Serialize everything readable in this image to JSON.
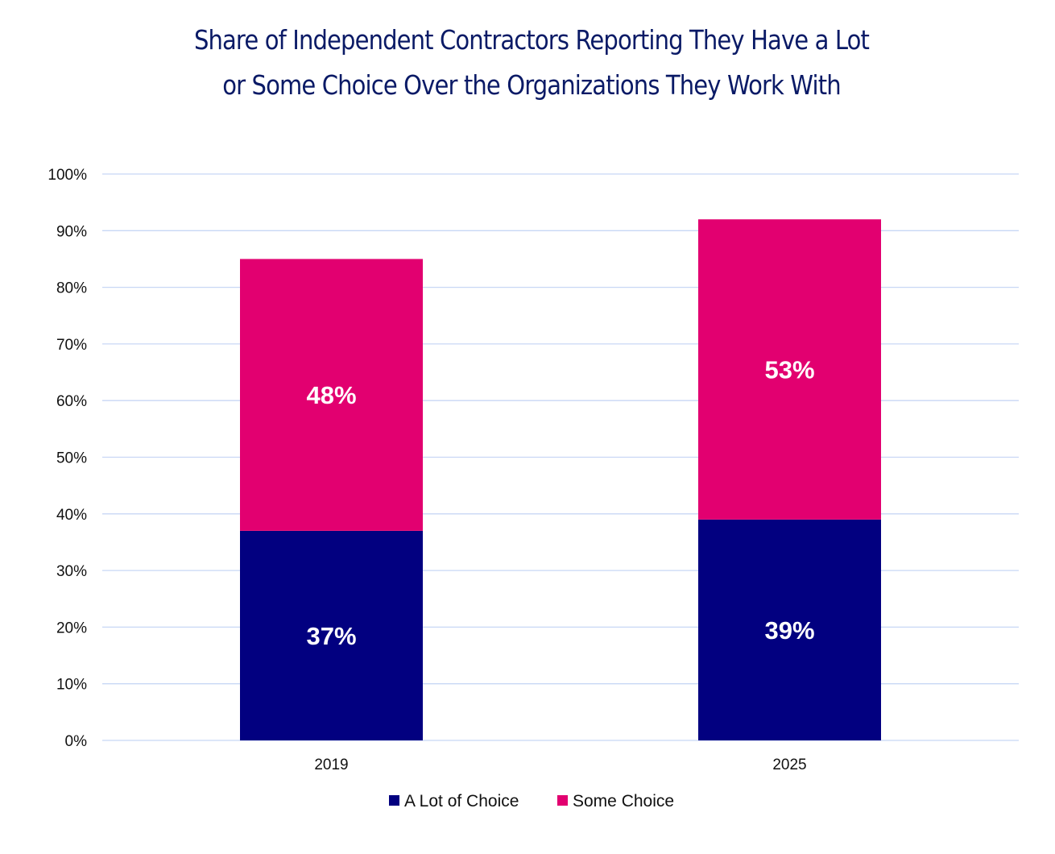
{
  "chart_data": {
    "type": "bar",
    "stacked": true,
    "title": [
      "Share of Independent Contractors Reporting They Have a Lot",
      "or Some Choice Over the Organizations They Work With"
    ],
    "xlabel": "",
    "ylabel": "",
    "categories": [
      "2019",
      "2025"
    ],
    "series": [
      {
        "name": "A Lot of Choice",
        "color": "#020080",
        "values": [
          37,
          39
        ],
        "labels": [
          "37%",
          "39%"
        ]
      },
      {
        "name": "Some Choice",
        "color": "#e20070",
        "values": [
          48,
          53
        ],
        "labels": [
          "48%",
          "53%"
        ]
      }
    ],
    "ylim": [
      0,
      100
    ],
    "yticks": [
      "0%",
      "10%",
      "20%",
      "30%",
      "40%",
      "50%",
      "60%",
      "70%",
      "80%",
      "90%",
      "100%"
    ],
    "grid": true,
    "gridColor": "#c8d7f5",
    "legend": "bottom-center"
  }
}
